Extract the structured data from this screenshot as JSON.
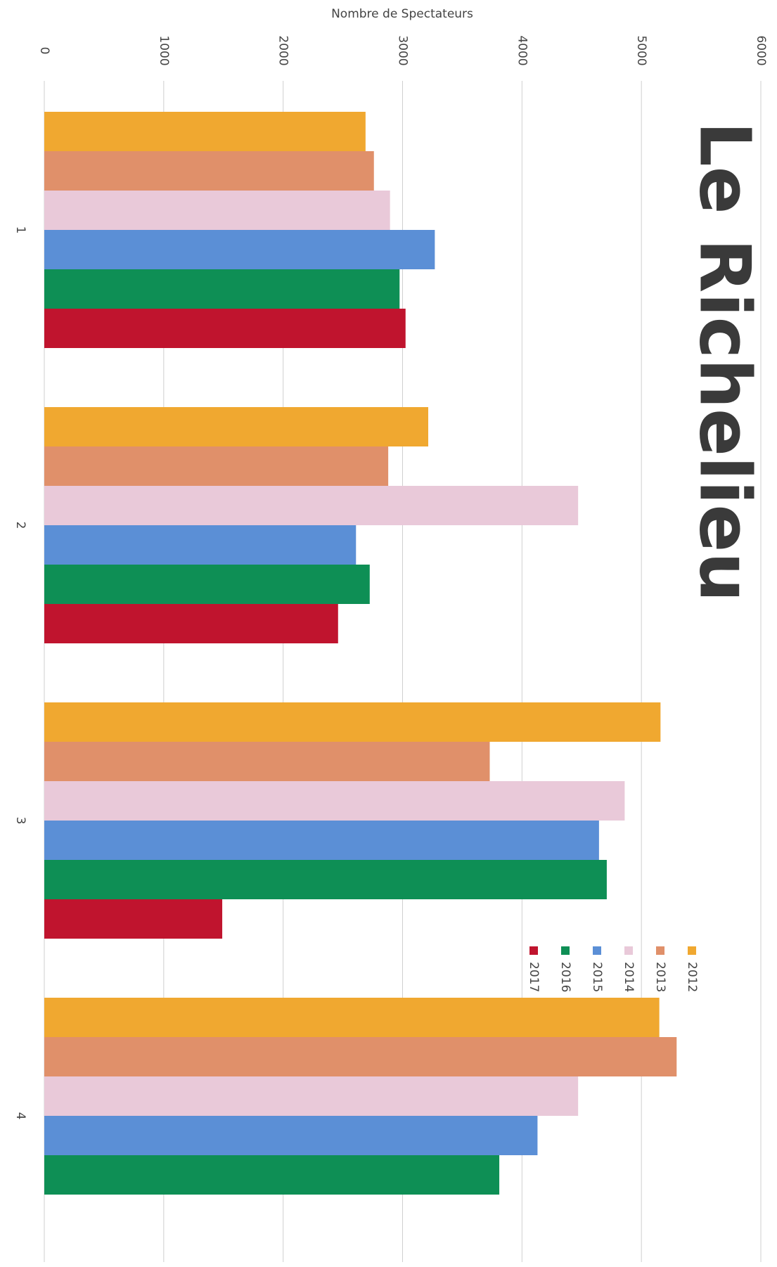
{
  "chart_data": {
    "type": "bar",
    "orientation": "horizontal",
    "title": "Nombre de Spectateurs",
    "logo": "Le Richelieu",
    "categories": [
      "1",
      "2",
      "3",
      "4"
    ],
    "series": [
      {
        "name": "2012",
        "color": "#f0a830",
        "values": [
          2690,
          3215,
          5160,
          5150
        ]
      },
      {
        "name": "2013",
        "color": "#e0906a",
        "values": [
          2760,
          2880,
          3730,
          5295
        ]
      },
      {
        "name": "2014",
        "color": "#e9c9d9",
        "values": [
          2895,
          4470,
          4860,
          4470
        ]
      },
      {
        "name": "2015",
        "color": "#5b8fd6",
        "values": [
          3270,
          2610,
          4645,
          4130
        ]
      },
      {
        "name": "2016",
        "color": "#0e8f55",
        "values": [
          2975,
          2725,
          4710,
          3810
        ]
      },
      {
        "name": "2017",
        "color": "#c0142e",
        "values": [
          3025,
          2460,
          1490,
          null
        ]
      }
    ],
    "xlim": [
      0,
      6000
    ],
    "xticks": [
      0,
      1000,
      2000,
      3000,
      4000,
      5000,
      6000
    ],
    "grid": true
  }
}
